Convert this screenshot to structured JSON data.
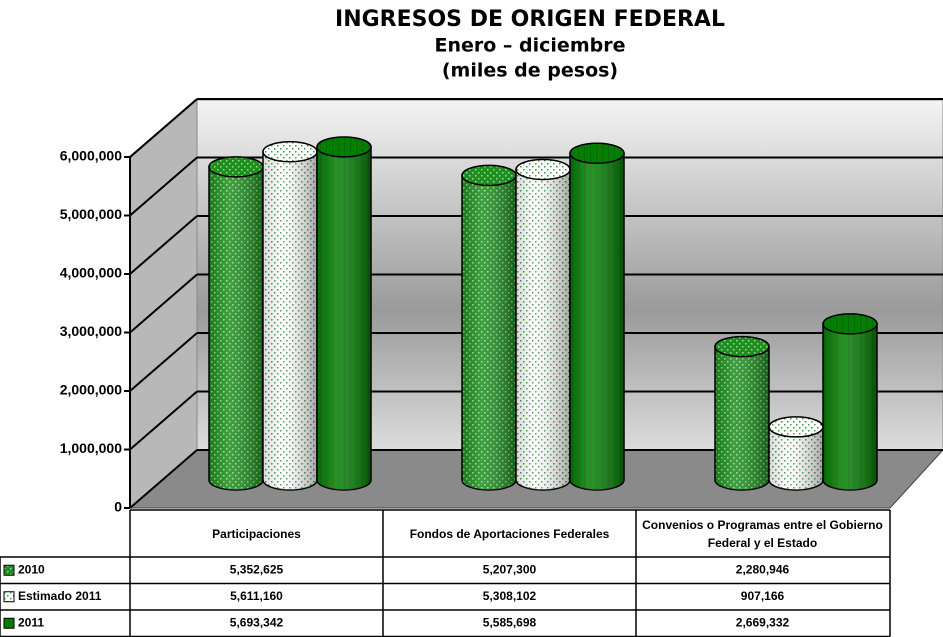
{
  "chart_data": {
    "type": "bar3d",
    "title": "INGRESOS DE ORIGEN FEDERAL",
    "subtitle": "Enero – diciembre",
    "unit_label": "(miles de pesos)",
    "categories": [
      "Participaciones",
      "Fondos de Aportaciones Federales",
      "Convenios o Programas entre el Gobierno Federal y el Estado"
    ],
    "series": [
      {
        "name": "2010",
        "color": "#1e8f1e",
        "values": [
          5352625,
          5207300,
          2280946
        ],
        "value_labels": [
          "5,352,625",
          "5,207,300",
          "2,280,946"
        ]
      },
      {
        "name": "Estimado 2011",
        "color": "#ffffff",
        "values": [
          5611160,
          5308102,
          907166
        ],
        "value_labels": [
          "5,611,160",
          "5,308,102",
          "907,166"
        ]
      },
      {
        "name": "2011",
        "color": "#008000",
        "values": [
          5693342,
          5585698,
          2669332
        ],
        "value_labels": [
          "5,693,342",
          "5,585,698",
          "2,669,332"
        ]
      }
    ],
    "ylim": [
      0,
      6000000
    ],
    "yticks": [
      0,
      {
        "value": 1000000,
        "label": "1,000,000"
      },
      {
        "value": 2000000,
        "label": "2,000,000"
      },
      {
        "value": 3000000,
        "label": "3,000,000"
      },
      {
        "value": 4000000,
        "label": "4,000,000"
      },
      {
        "value": 5000000,
        "label": "5,000,000"
      },
      {
        "value": 6000000,
        "label": "6,000,000"
      }
    ],
    "grid": true
  }
}
